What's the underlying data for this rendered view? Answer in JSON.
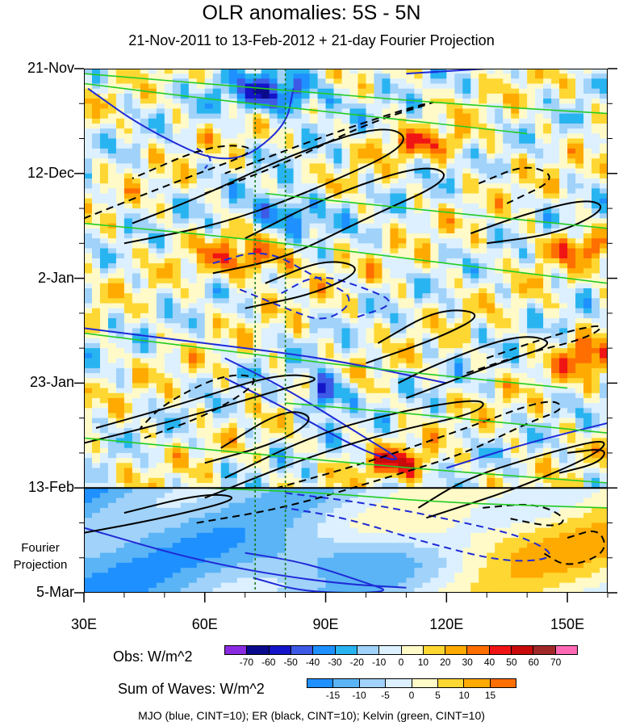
{
  "chart_data": {
    "type": "heatmap",
    "title": "OLR anomalies: 5S - 5N",
    "subtitle": "21-Nov-2011 to 13-Feb-2012 + 21-day Fourier Projection",
    "x_axis": {
      "ticks": [
        "30E",
        "60E",
        "90E",
        "120E",
        "150E"
      ],
      "tick_values": [
        30,
        60,
        90,
        120,
        150
      ],
      "range": [
        30,
        160
      ],
      "units": "degrees longitude"
    },
    "y_axis": {
      "ticks": [
        "21-Nov",
        "12-Dec",
        "2-Jan",
        "23-Jan",
        "13-Feb",
        "5-Mar"
      ],
      "tick_days": [
        0,
        21,
        42,
        63,
        84,
        105
      ],
      "range_days": [
        0,
        105
      ],
      "reversed": true
    },
    "projection_label": "Fourier Projection",
    "observed_end_day": 84,
    "reference_longitudes": [
      72.5,
      80
    ],
    "obs_colorbar": {
      "label": "Obs: W/m^2",
      "levels": [
        -70,
        -60,
        -50,
        -40,
        -30,
        -20,
        -10,
        0,
        10,
        20,
        30,
        40,
        50,
        60,
        70
      ],
      "level_labels": [
        "-70",
        "-60",
        "-50",
        "-40",
        "-30",
        "-20",
        "-10",
        "0",
        "10",
        "20",
        "30",
        "40",
        "50",
        "60",
        "70"
      ],
      "colors": [
        "#8a2be2",
        "#0a0a8c",
        "#1414c8",
        "#3c5ae6",
        "#1e90ff",
        "#28b4f0",
        "#a0d2fa",
        "#dcf0ff",
        "#fffac8",
        "#ffd732",
        "#ffaa00",
        "#ff6e00",
        "#f01414",
        "#c80a0a",
        "#a02828",
        "#ff69b4"
      ]
    },
    "sum_colorbar": {
      "label": "Sum of Waves: W/m^2",
      "levels": [
        -15,
        -10,
        -5,
        0,
        5,
        10,
        15
      ],
      "level_labels": [
        "-15",
        "-10",
        "-5",
        "0",
        "5",
        "10",
        "15"
      ],
      "colors": [
        "#1e90ff",
        "#5ab4f5",
        "#a0d2fa",
        "#dcf0ff",
        "#fffac8",
        "#ffd732",
        "#ffaa00",
        "#ff6e00"
      ]
    },
    "contour_legend": "MJO (blue, CINT=10); ER (black, CINT=10); Kelvin (green, CINT=10)",
    "contour_series": [
      {
        "name": "MJO",
        "color": "#1f2ad6"
      },
      {
        "name": "ER",
        "color": "#000000"
      },
      {
        "name": "Kelvin",
        "color": "#22cc22"
      }
    ],
    "contours": {
      "mjo": [
        {
          "style": "solid",
          "pts": [
            [
              30,
              92
            ],
            [
              60,
              99
            ],
            [
              90,
              103
            ],
            [
              110,
              104
            ]
          ]
        },
        {
          "style": "solid",
          "pts": [
            [
              31,
              4
            ],
            [
              45,
              12
            ],
            [
              66,
              20
            ],
            [
              80,
              12
            ],
            [
              82,
              4
            ]
          ]
        },
        {
          "style": "solid",
          "pts": [
            [
              65,
              58
            ],
            [
              80,
              64
            ],
            [
              100,
              74
            ],
            [
              110,
              79
            ],
            [
              100,
              77
            ],
            [
              80,
              68
            ],
            [
              65,
              62
            ]
          ]
        },
        {
          "style": "solid",
          "pts": [
            [
              70,
              97
            ],
            [
              85,
              99
            ],
            [
              100,
              103
            ],
            [
              107,
              105
            ],
            [
              85,
              105
            ],
            [
              72,
              102
            ]
          ]
        },
        {
          "style": "solid",
          "pts": [
            [
              30,
              52
            ],
            [
              60,
              55
            ],
            [
              90,
              58
            ],
            [
              120,
              63
            ]
          ]
        },
        {
          "style": "solid",
          "pts": [
            [
              120,
              80
            ],
            [
              140,
              75
            ],
            [
              160,
              71
            ]
          ]
        },
        {
          "style": "solid",
          "pts": [
            [
              110,
              1
            ],
            [
              130,
              0
            ]
          ]
        },
        {
          "style": "dashed",
          "pts": [
            [
              62,
              39
            ],
            [
              75,
              36
            ],
            [
              88,
              42
            ],
            [
              98,
              46
            ],
            [
              90,
              51
            ],
            [
              80,
              48
            ],
            [
              68,
              44
            ]
          ]
        },
        {
          "style": "dashed",
          "pts": [
            [
              79,
              45
            ],
            [
              88,
              41
            ],
            [
              100,
              44
            ],
            [
              108,
              47
            ],
            [
              97,
              50
            ]
          ]
        },
        {
          "style": "dashed",
          "pts": [
            [
              80,
              85
            ],
            [
              100,
              87
            ],
            [
              125,
              91
            ],
            [
              140,
              94
            ],
            [
              148,
              98
            ],
            [
              135,
              99
            ],
            [
              115,
              95
            ],
            [
              95,
              90
            ],
            [
              80,
              88
            ]
          ]
        },
        {
          "style": "dashed",
          "pts": [
            [
              58,
              16
            ],
            [
              62,
              18
            ],
            [
              60,
              20
            ]
          ]
        }
      ],
      "er": [
        {
          "style": "solid",
          "pts": [
            [
              40,
              35
            ],
            [
              65,
              31
            ],
            [
              88,
              24
            ],
            [
              112,
              15
            ],
            [
              105,
              11
            ],
            [
              82,
              17
            ],
            [
              58,
              26
            ],
            [
              42,
              31
            ]
          ]
        },
        {
          "style": "solid",
          "pts": [
            [
              62,
              41
            ],
            [
              80,
              38
            ],
            [
              100,
              30
            ],
            [
              122,
              22
            ],
            [
              115,
              19
            ],
            [
              92,
              25
            ],
            [
              70,
              34
            ]
          ]
        },
        {
          "style": "solid",
          "pts": [
            [
              70,
              48
            ],
            [
              88,
              45
            ],
            [
              100,
              40
            ],
            [
              90,
              38
            ],
            [
              75,
              43
            ]
          ]
        },
        {
          "style": "solid",
          "pts": [
            [
              30,
              75
            ],
            [
              55,
              70
            ],
            [
              80,
              64
            ],
            [
              90,
              62
            ],
            [
              78,
              61
            ],
            [
              55,
              67
            ],
            [
              33,
              72
            ]
          ]
        },
        {
          "style": "solid",
          "pts": [
            [
              60,
              79
            ],
            [
              78,
              75
            ],
            [
              88,
              70
            ],
            [
              80,
              68
            ],
            [
              64,
              76
            ]
          ]
        },
        {
          "style": "solid",
          "pts": [
            [
              60,
              86
            ],
            [
              85,
              78
            ],
            [
              105,
              73
            ],
            [
              128,
              69
            ],
            [
              130,
              66
            ],
            [
              112,
              68
            ],
            [
              88,
              73
            ],
            [
              65,
              82
            ]
          ]
        },
        {
          "style": "solid",
          "pts": [
            [
              100,
              59
            ],
            [
              118,
              54
            ],
            [
              130,
              49
            ],
            [
              118,
              48
            ],
            [
              103,
              55
            ]
          ]
        },
        {
          "style": "solid",
          "pts": [
            [
              110,
              66
            ],
            [
              133,
              59
            ],
            [
              148,
              55
            ],
            [
              138,
              53
            ],
            [
              118,
              59
            ],
            [
              108,
              63
            ]
          ]
        },
        {
          "style": "solid",
          "pts": [
            [
              115,
              90
            ],
            [
              138,
              84
            ],
            [
              158,
              77
            ],
            [
              160,
              74
            ],
            [
              145,
              77
            ],
            [
              125,
              82
            ],
            [
              113,
              88
            ]
          ]
        },
        {
          "style": "solid",
          "pts": [
            [
              148,
              81
            ],
            [
              158,
              79
            ],
            [
              160,
              76
            ],
            [
              150,
              77
            ]
          ]
        },
        {
          "style": "solid",
          "pts": [
            [
              30,
              93
            ],
            [
              50,
              90
            ],
            [
              70,
              86
            ],
            [
              60,
              85
            ],
            [
              40,
              89
            ]
          ]
        },
        {
          "style": "solid",
          "pts": [
            [
              126,
              33
            ],
            [
              140,
              29
            ],
            [
              155,
              26
            ],
            [
              160,
              28
            ],
            [
              148,
              33
            ],
            [
              130,
              35
            ]
          ]
        },
        {
          "style": "dashed",
          "pts": [
            [
              30,
              30
            ],
            [
              55,
              22
            ],
            [
              75,
              16
            ],
            [
              62,
              15
            ],
            [
              42,
              22
            ]
          ]
        },
        {
          "style": "dashed",
          "pts": [
            [
              45,
              74
            ],
            [
              62,
              69
            ],
            [
              75,
              62
            ],
            [
              65,
              61
            ],
            [
              50,
              67
            ],
            [
              44,
              72
            ]
          ]
        },
        {
          "style": "dashed",
          "pts": [
            [
              58,
              91
            ],
            [
              80,
              88
            ],
            [
              105,
              82
            ],
            [
              125,
              77
            ],
            [
              140,
              71
            ],
            [
              150,
              68
            ],
            [
              145,
              66
            ],
            [
              125,
              72
            ],
            [
              100,
              79
            ],
            [
              78,
              84
            ]
          ]
        },
        {
          "style": "dashed",
          "pts": [
            [
              125,
              61
            ],
            [
              140,
              57
            ],
            [
              155,
              54
            ],
            [
              160,
              51
            ],
            [
              148,
              53
            ],
            [
              130,
              58
            ]
          ]
        },
        {
          "style": "dashed",
          "pts": [
            [
              129,
              88
            ],
            [
              142,
              87
            ],
            [
              150,
              90
            ],
            [
              147,
              92
            ],
            [
              135,
              90
            ]
          ]
        },
        {
          "style": "dashed",
          "pts": [
            [
              150,
              94
            ],
            [
              158,
              92
            ],
            [
              160,
              97
            ],
            [
              150,
              100
            ],
            [
              144,
              97
            ]
          ]
        },
        {
          "style": "dashed",
          "pts": [
            [
              128,
              23
            ],
            [
              140,
              19
            ],
            [
              148,
              22
            ],
            [
              135,
              27
            ]
          ]
        },
        {
          "style": "dashed",
          "pts": [
            [
              60,
              25
            ],
            [
              80,
              19
            ],
            [
              100,
              11
            ],
            [
              120,
              6
            ],
            [
              110,
              8
            ],
            [
              88,
              14
            ],
            [
              65,
              21
            ]
          ]
        }
      ],
      "kelvin": [
        {
          "style": "solid",
          "pts": [
            [
              30,
              3
            ],
            [
              60,
              6
            ],
            [
              95,
              9
            ],
            [
              140,
              13
            ]
          ]
        },
        {
          "style": "solid",
          "pts": [
            [
              30,
              1
            ],
            [
              75,
              4
            ],
            [
              120,
              7
            ],
            [
              160,
              9
            ]
          ]
        },
        {
          "style": "solid",
          "pts": [
            [
              30,
              31
            ],
            [
              70,
              34
            ],
            [
              110,
              38
            ],
            [
              160,
              43
            ]
          ]
        },
        {
          "style": "solid",
          "pts": [
            [
              30,
              53
            ],
            [
              60,
              56
            ],
            [
              100,
              60
            ],
            [
              150,
              64
            ]
          ]
        },
        {
          "style": "solid",
          "pts": [
            [
              30,
              74
            ],
            [
              70,
              77
            ],
            [
              110,
              80
            ],
            [
              160,
              83
            ]
          ]
        },
        {
          "style": "solid",
          "pts": [
            [
              60,
              84
            ],
            [
              90,
              85
            ],
            [
              120,
              87
            ],
            [
              160,
              88
            ]
          ]
        },
        {
          "style": "solid",
          "pts": [
            [
              75,
              25
            ],
            [
              110,
              28
            ],
            [
              160,
              32
            ]
          ]
        },
        {
          "style": "solid",
          "pts": [
            [
              80,
              67
            ],
            [
              110,
              69
            ],
            [
              160,
              73
            ]
          ]
        }
      ]
    }
  }
}
